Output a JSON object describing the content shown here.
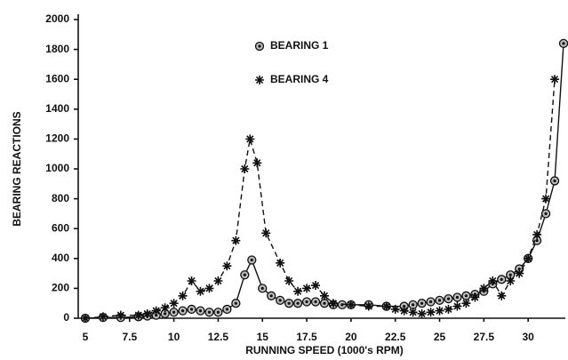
{
  "chart_data": {
    "type": "line",
    "y_axis_label": "BEARING REACTIONS",
    "x_axis_label": "RUNNING SPEED (1000's RPM)",
    "xlim": [
      4.6,
      32.1
    ],
    "xticks": [
      5,
      7.5,
      10,
      12.5,
      15,
      17.5,
      20,
      22.5,
      25,
      27.5,
      30
    ],
    "ylim": [
      0,
      2000
    ],
    "yticks": [
      0,
      200,
      400,
      600,
      800,
      1000,
      1200,
      1400,
      1600,
      1800,
      2000
    ],
    "grid": false,
    "series": [
      {
        "name": "BEARING 1",
        "color": "#111111",
        "marker": "circle",
        "dash": "solid",
        "x": [
          5,
          6,
          7,
          8,
          8.5,
          9,
          9.5,
          10,
          10.5,
          11,
          11.5,
          12,
          12.5,
          13,
          13.5,
          14,
          14.4,
          15,
          15.5,
          16,
          16.5,
          17,
          17.5,
          18,
          18.5,
          19,
          19.5,
          20,
          21,
          22,
          23,
          23.5,
          24,
          24.5,
          25,
          25.5,
          26,
          26.5,
          27,
          27.5,
          28,
          28.5,
          29,
          29.5,
          30,
          30.5,
          31,
          31.5,
          32
        ],
        "values": [
          0,
          5,
          5,
          10,
          15,
          20,
          30,
          40,
          50,
          60,
          50,
          40,
          40,
          60,
          100,
          290,
          390,
          200,
          150,
          120,
          100,
          100,
          110,
          110,
          100,
          90,
          90,
          90,
          90,
          80,
          80,
          90,
          100,
          110,
          120,
          130,
          140,
          150,
          160,
          180,
          230,
          260,
          290,
          330,
          400,
          520,
          700,
          920,
          1840
        ]
      },
      {
        "name": "BEARING 4",
        "color": "#111111",
        "marker": "asterisk",
        "dash": "dashed",
        "x": [
          5,
          6,
          7,
          8,
          8.5,
          9,
          9.5,
          10,
          10.5,
          11,
          11.5,
          12,
          12.5,
          13,
          13.5,
          14,
          14.3,
          14.7,
          15.2,
          16,
          16.5,
          17,
          17.5,
          18,
          18.5,
          19,
          20,
          21,
          22,
          22.5,
          23,
          23.5,
          24,
          24.5,
          25,
          25.5,
          26,
          26.5,
          27,
          27.5,
          28,
          28.5,
          29,
          29.5,
          30,
          30.5,
          31,
          31.5
        ],
        "values": [
          0,
          10,
          20,
          20,
          30,
          50,
          70,
          100,
          150,
          250,
          180,
          200,
          250,
          350,
          520,
          1000,
          1200,
          1040,
          570,
          370,
          250,
          180,
          200,
          220,
          150,
          100,
          90,
          80,
          80,
          60,
          50,
          40,
          30,
          40,
          50,
          60,
          80,
          100,
          140,
          200,
          250,
          150,
          250,
          300,
          400,
          560,
          800,
          1600
        ]
      }
    ]
  }
}
